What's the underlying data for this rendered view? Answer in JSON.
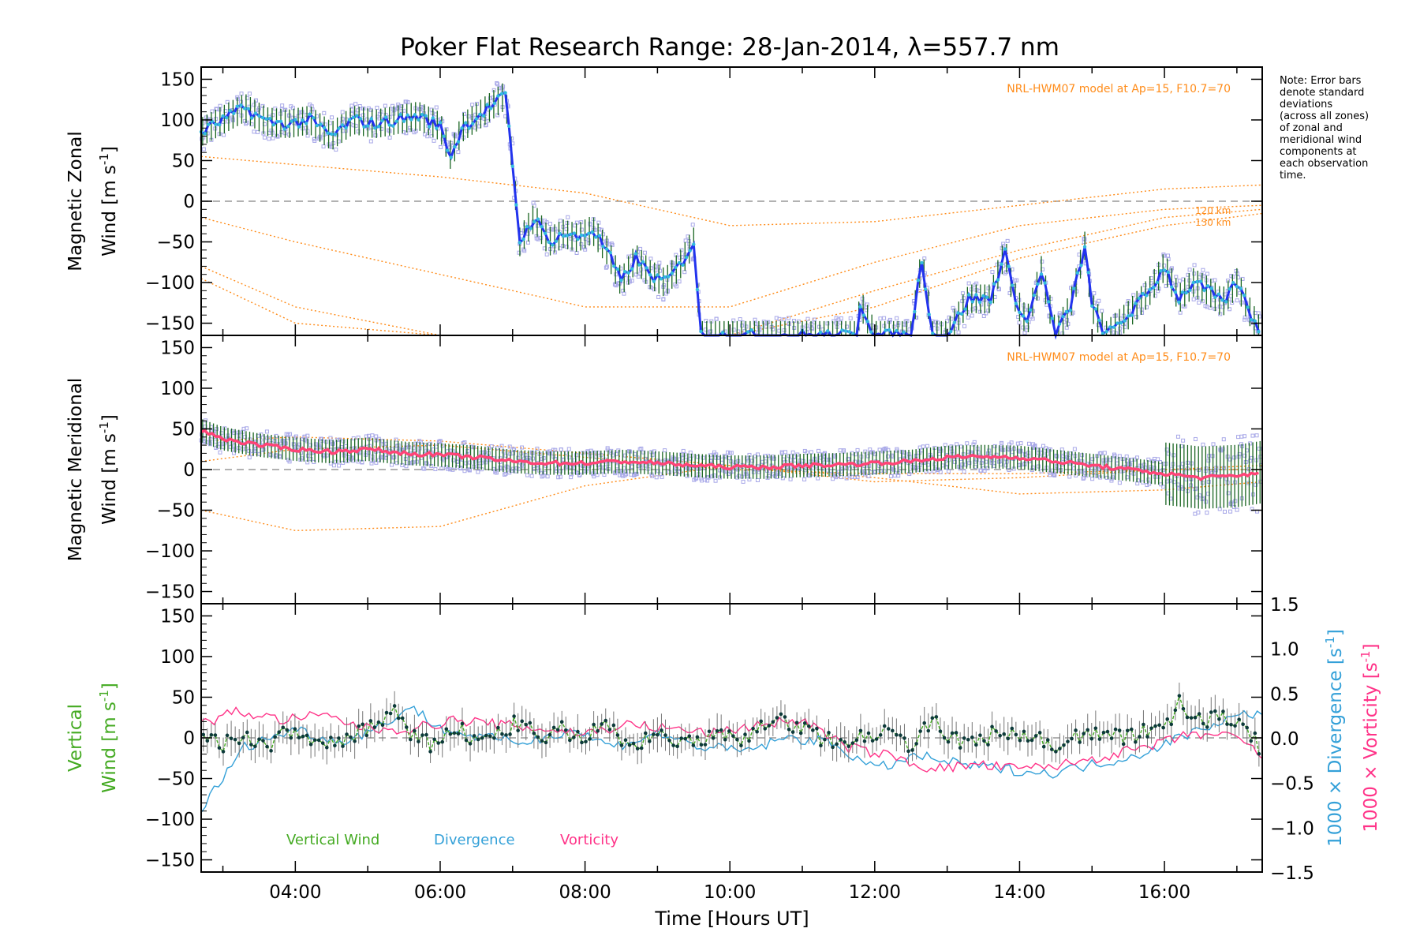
{
  "title": "Poker Flat Research Range: 28-Jan-2014, λ=557.7 nm",
  "note_lines": [
    "Note: Error bars",
    "denote standard",
    "deviations",
    "(across all zones)",
    "of zonal and",
    "meridional wind",
    "components at",
    "each observation",
    "time."
  ],
  "model_label": "NRL-HWM07 model at Ap=15, F10.7=70",
  "altitude_labels": [
    "120 km",
    "130 km"
  ],
  "x_axis": {
    "label": "Time [Hours UT]",
    "range_hours": [
      2.7,
      17.35
    ],
    "ticks": [
      {
        "value": 4,
        "label": "04:00"
      },
      {
        "value": 6,
        "label": "06:00"
      },
      {
        "value": 8,
        "label": "08:00"
      },
      {
        "value": 10,
        "label": "10:00"
      },
      {
        "value": 12,
        "label": "12:00"
      },
      {
        "value": 14,
        "label": "14:00"
      },
      {
        "value": 16,
        "label": "16:00"
      }
    ]
  },
  "y_ticks": [
    "150",
    "100",
    "50",
    "0",
    "−50",
    "−100",
    "−150"
  ],
  "right_ticks": [
    "1.5",
    "1.0",
    "0.5",
    "0.0",
    "−0.5",
    "−1.0",
    "−1.5"
  ],
  "panels": {
    "zonal": {
      "ylabel_1": "Magnetic Zonal",
      "ylabel_2": "Wind [m s",
      "ylabel_sup": "-1",
      "ylabel_end": "]"
    },
    "meridional": {
      "ylabel_1": "Magnetic Meridional",
      "ylabel_2": "Wind [m s",
      "ylabel_sup": "-1",
      "ylabel_end": "]"
    },
    "vertical": {
      "ylabel_1": "Vertical",
      "ylabel_2": "Wind [m s",
      "ylabel_sup": "-1",
      "ylabel_end": "]",
      "right_label_1": "1000 × Divergence [s",
      "right_label_1_sup": "-1",
      "right_label_1_end": "]",
      "right_label_2": "1000 × Vorticity [s",
      "right_label_2_sup": "-1",
      "right_label_2_end": "]",
      "legend": [
        "Vertical Wind",
        "Divergence",
        "Vorticity"
      ]
    }
  },
  "colors": {
    "zonal_line": "#2233ee",
    "zonal_marker": "#33bbdd",
    "meridional_line": "#ff4477",
    "model": "#ff8c1a",
    "scatter": "#a8a8e8",
    "vertical": "#44aa22",
    "divergence": "#33a0d8",
    "vorticity": "#ff3388",
    "errorbar": "#1a6622",
    "zero_line": "#999999"
  },
  "chart_data": [
    {
      "type": "line",
      "panel": "zonal",
      "xlabel": "Time [Hours UT]",
      "ylabel": "Magnetic Zonal Wind [m s-1]",
      "ylim": [
        -165,
        165
      ],
      "grid": false,
      "x": [
        2.7,
        3.0,
        3.3,
        3.6,
        3.9,
        4.2,
        4.5,
        4.8,
        5.1,
        5.4,
        5.7,
        6.0,
        6.15,
        6.3,
        6.6,
        6.9,
        7.0,
        7.1,
        7.3,
        7.5,
        7.7,
        7.9,
        8.1,
        8.3,
        8.5,
        8.7,
        8.9,
        9.1,
        9.3,
        9.5,
        9.6,
        9.8,
        10.0,
        11.0,
        11.75,
        11.8,
        12.0,
        12.5,
        12.65,
        12.8,
        13.0,
        13.3,
        13.6,
        13.8,
        13.9,
        14.1,
        14.3,
        14.5,
        14.7,
        14.9,
        15.0,
        15.2,
        15.5,
        15.8,
        16.0,
        16.2,
        16.4,
        16.6,
        16.8,
        17.0,
        17.2,
        17.35
      ],
      "y": [
        85,
        100,
        115,
        98,
        95,
        100,
        80,
        100,
        95,
        100,
        105,
        92,
        55,
        90,
        110,
        130,
        45,
        -50,
        -20,
        -50,
        -40,
        -45,
        -35,
        -60,
        -100,
        -70,
        -90,
        -100,
        -80,
        -50,
        -165,
        -165,
        -165,
        -165,
        -165,
        -125,
        -165,
        -165,
        -70,
        -165,
        -165,
        -120,
        -120,
        -60,
        -110,
        -150,
        -85,
        -165,
        -130,
        -55,
        -130,
        -165,
        -140,
        -110,
        -80,
        -120,
        -100,
        -110,
        -125,
        -100,
        -140,
        -165
      ],
      "model_series": [
        {
          "name": "",
          "x": [
            2.7,
            4,
            6,
            8,
            10,
            12,
            14,
            16,
            17.35
          ],
          "y": [
            55,
            45,
            30,
            10,
            -30,
            -25,
            -5,
            15,
            20
          ]
        },
        {
          "name": "",
          "x": [
            2.7,
            4,
            6,
            8,
            10,
            12,
            14,
            16,
            17.35
          ],
          "y": [
            -20,
            -50,
            -90,
            -130,
            -130,
            -75,
            -30,
            -10,
            -5
          ]
        },
        {
          "name": "120 km",
          "x": [
            2.7,
            4,
            6,
            8,
            10,
            12,
            14,
            16,
            17.35
          ],
          "y": [
            -80,
            -130,
            -165,
            -165,
            -165,
            -110,
            -60,
            -20,
            -10
          ]
        },
        {
          "name": "130 km",
          "x": [
            2.7,
            4,
            6,
            8,
            10,
            12,
            14,
            16,
            17.35
          ],
          "y": [
            -95,
            -150,
            -165,
            -165,
            -165,
            -130,
            -70,
            -30,
            -15
          ]
        }
      ]
    },
    {
      "type": "line",
      "panel": "meridional",
      "xlabel": "Time [Hours UT]",
      "ylabel": "Magnetic Meridional Wind [m s-1]",
      "ylim": [
        -165,
        165
      ],
      "grid": false,
      "x": [
        2.7,
        3.0,
        3.5,
        4.0,
        4.5,
        5.0,
        5.5,
        6.0,
        6.5,
        7.0,
        7.5,
        8.0,
        8.5,
        9.0,
        9.5,
        10.0,
        10.5,
        11.0,
        11.5,
        12.0,
        12.5,
        13.0,
        13.5,
        14.0,
        14.5,
        15.0,
        15.5,
        16.0,
        16.5,
        17.0,
        17.35
      ],
      "y": [
        48,
        38,
        30,
        25,
        22,
        25,
        20,
        18,
        15,
        10,
        8,
        8,
        10,
        8,
        5,
        3,
        3,
        5,
        6,
        8,
        10,
        15,
        16,
        15,
        10,
        5,
        0,
        -5,
        -10,
        -8,
        -3
      ],
      "model_series": [
        {
          "name": "",
          "x": [
            2.7,
            4,
            6,
            8,
            10,
            12,
            14,
            16,
            17.35
          ],
          "y": [
            35,
            40,
            35,
            20,
            5,
            -15,
            -10,
            0,
            5
          ]
        },
        {
          "name": "",
          "x": [
            2.7,
            4,
            6,
            8,
            10,
            12,
            14,
            16,
            17.35
          ],
          "y": [
            -50,
            -75,
            -70,
            -20,
            5,
            -10,
            -30,
            -25,
            -15
          ]
        },
        {
          "name": "",
          "x": [
            2.7,
            4,
            6,
            8,
            10,
            12,
            14,
            16,
            17.35
          ],
          "y": [
            10,
            25,
            30,
            15,
            0,
            -5,
            -5,
            0,
            0
          ]
        }
      ]
    },
    {
      "type": "line",
      "panel": "vertical",
      "xlabel": "Time [Hours UT]",
      "ylabel": "Vertical Wind [m s-1]",
      "ylim": [
        -165,
        165
      ],
      "y2lim": [
        -1.5,
        1.5
      ],
      "grid": false,
      "series": [
        {
          "name": "Vertical Wind",
          "x": [
            2.7,
            3.0,
            3.3,
            3.6,
            3.9,
            4.2,
            4.5,
            4.8,
            5.1,
            5.35,
            5.6,
            5.9,
            6.2,
            6.5,
            6.8,
            7.1,
            7.4,
            7.7,
            8.0,
            8.3,
            8.6,
            8.9,
            9.2,
            9.5,
            9.8,
            10.1,
            10.4,
            10.7,
            11.0,
            11.3,
            11.6,
            11.9,
            12.2,
            12.5,
            12.8,
            13.1,
            13.4,
            13.7,
            14.0,
            14.3,
            14.6,
            14.9,
            15.2,
            15.5,
            15.8,
            16.1,
            16.2,
            16.5,
            16.8,
            17.1,
            17.35
          ],
          "y": [
            0,
            -10,
            5,
            -15,
            10,
            0,
            -10,
            5,
            15,
            35,
            0,
            -10,
            15,
            -5,
            5,
            20,
            -5,
            10,
            0,
            20,
            -15,
            5,
            0,
            -10,
            5,
            -5,
            10,
            25,
            10,
            0,
            -10,
            5,
            15,
            -10,
            20,
            0,
            -10,
            10,
            5,
            0,
            -15,
            10,
            5,
            0,
            10,
            15,
            45,
            20,
            30,
            10,
            -15
          ]
        },
        {
          "name": "Divergence",
          "x": [
            2.7,
            3.3,
            4.0,
            4.6,
            5.1,
            5.6,
            6.0,
            6.6,
            7.2,
            7.8,
            8.4,
            9.0,
            9.6,
            10.2,
            10.8,
            11.4,
            12.0,
            12.6,
            13.2,
            13.8,
            14.4,
            15.0,
            15.6,
            16.2,
            16.8,
            17.35
          ],
          "y": [
            -0.8,
            -0.1,
            0.1,
            -0.05,
            0.1,
            0.35,
            0.1,
            0.0,
            -0.05,
            0.1,
            -0.1,
            0.05,
            -0.1,
            -0.15,
            0.0,
            -0.05,
            -0.35,
            -0.2,
            -0.3,
            -0.35,
            -0.4,
            -0.3,
            -0.2,
            0.0,
            0.2,
            0.3
          ]
        },
        {
          "name": "Vorticity",
          "x": [
            2.7,
            3.2,
            3.8,
            4.4,
            5.0,
            5.6,
            6.2,
            6.8,
            7.4,
            8.0,
            8.6,
            9.2,
            9.8,
            10.4,
            11.0,
            11.6,
            12.2,
            12.8,
            13.4,
            14.0,
            14.6,
            15.2,
            15.8,
            16.4,
            17.0,
            17.35
          ],
          "y": [
            0.15,
            0.3,
            0.2,
            0.25,
            0.1,
            0.1,
            0.2,
            0.15,
            0.1,
            0.05,
            0.15,
            0.1,
            0.05,
            0.15,
            0.2,
            -0.1,
            -0.2,
            -0.35,
            -0.3,
            -0.35,
            -0.3,
            -0.2,
            -0.1,
            0.05,
            0.0,
            -0.2
          ]
        }
      ]
    }
  ]
}
